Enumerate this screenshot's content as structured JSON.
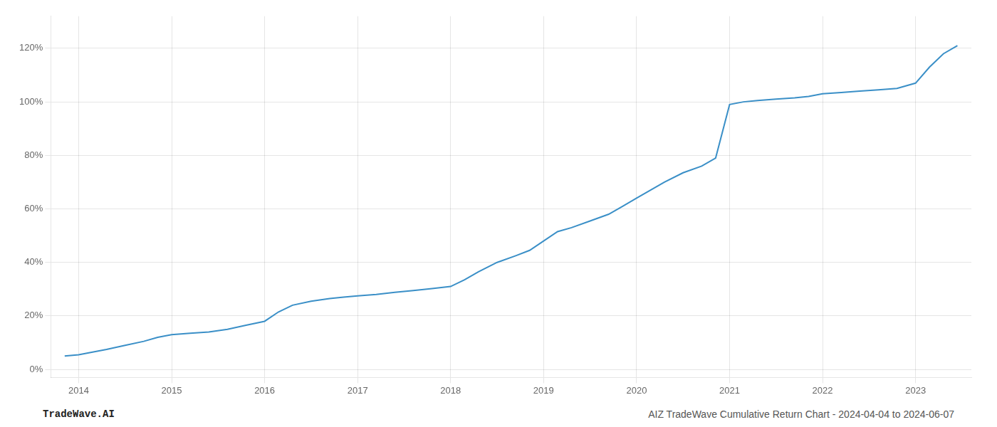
{
  "chart_data": {
    "type": "line",
    "annotations": [
      "TradeWave.AI",
      "AIZ TradeWave Cumulative Return Chart - 2024-04-04 to 2024-06-07"
    ],
    "x": [
      2013.85,
      2014.0,
      2014.15,
      2014.3,
      2014.5,
      2014.7,
      2014.85,
      2015.0,
      2015.2,
      2015.4,
      2015.6,
      2015.8,
      2016.0,
      2016.15,
      2016.3,
      2016.5,
      2016.7,
      2016.85,
      2017.0,
      2017.2,
      2017.4,
      2017.6,
      2017.8,
      2018.0,
      2018.15,
      2018.3,
      2018.5,
      2018.7,
      2018.85,
      2019.0,
      2019.15,
      2019.3,
      2019.5,
      2019.7,
      2019.85,
      2020.0,
      2020.15,
      2020.3,
      2020.5,
      2020.7,
      2020.85,
      2021.0,
      2021.15,
      2021.3,
      2021.5,
      2021.7,
      2021.85,
      2022.0,
      2022.2,
      2022.4,
      2022.6,
      2022.8,
      2023.0,
      2023.15,
      2023.3,
      2023.45
    ],
    "values": [
      5.0,
      5.5,
      6.5,
      7.5,
      9.0,
      10.5,
      12.0,
      13.0,
      13.5,
      14.0,
      15.0,
      16.5,
      18.0,
      21.5,
      24.0,
      25.5,
      26.5,
      27.0,
      27.5,
      28.0,
      28.8,
      29.5,
      30.2,
      31.0,
      33.5,
      36.5,
      40.0,
      42.5,
      44.5,
      48.0,
      51.5,
      53.0,
      55.5,
      58.0,
      61.0,
      64.0,
      67.0,
      70.0,
      73.5,
      76.0,
      79.0,
      99.0,
      100.0,
      100.5,
      101.0,
      101.5,
      102.0,
      103.0,
      103.5,
      104.0,
      104.5,
      105.0,
      107.0,
      113.0,
      118.0,
      121.0
    ],
    "color": "#3a8fc7",
    "xlim": [
      2013.7,
      2023.6
    ],
    "ylim": [
      -3,
      132
    ],
    "xticks": [
      2014,
      2015,
      2016,
      2017,
      2018,
      2019,
      2020,
      2021,
      2022,
      2023
    ],
    "yticks": [
      {
        "value": 0,
        "label": "0%"
      },
      {
        "value": 20,
        "label": "20%"
      },
      {
        "value": 40,
        "label": "40%"
      },
      {
        "value": 60,
        "label": "60%"
      },
      {
        "value": 80,
        "label": "80%"
      },
      {
        "value": 100,
        "label": "100%"
      },
      {
        "value": 120,
        "label": "120%"
      }
    ],
    "grid": true
  }
}
